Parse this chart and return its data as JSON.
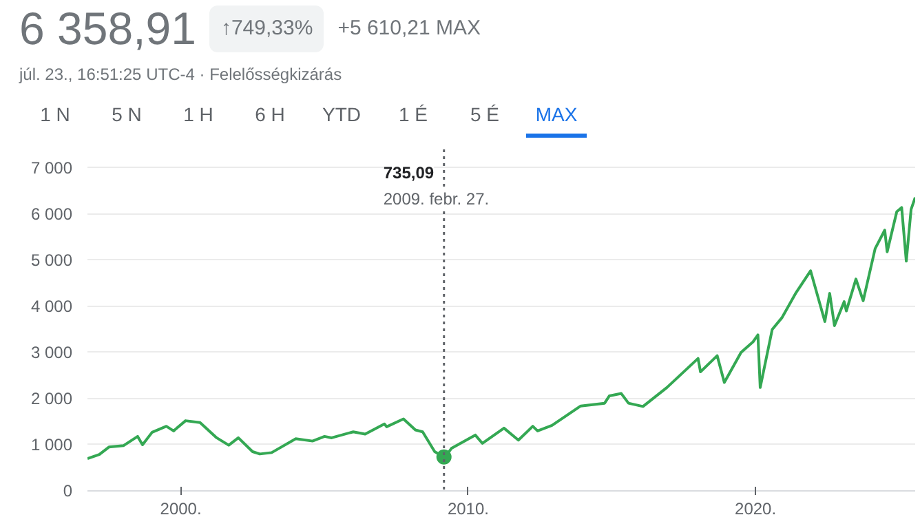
{
  "chart_data": {
    "type": "line",
    "title": "6 358,91",
    "subtitle": "júl. 23., 16:51:25 UTC-4 · Felelősségkizárás",
    "annotations": [
      "↑749,33%",
      "+5 610,21 MAX",
      "1 N",
      "5 N",
      "1 H",
      "6 H",
      "YTD",
      "1 É",
      "5 É",
      "MAX",
      "735,09",
      "2009. febr. 27."
    ],
    "x": [
      "1996-10",
      "1997-03",
      "1997-07",
      "1998-01",
      "1998-07",
      "1998-09",
      "1999-01",
      "1999-07",
      "1999-10",
      "2000-03",
      "2000-09",
      "2001-04",
      "2001-09",
      "2002-01",
      "2002-07",
      "2002-10",
      "2003-03",
      "2004-01",
      "2004-08",
      "2005-01",
      "2005-04",
      "2006-01",
      "2006-06",
      "2007-02",
      "2007-03",
      "2007-10",
      "2008-03",
      "2008-06",
      "2008-11",
      "2009-02-27",
      "2009-03",
      "2009-06",
      "2010-04",
      "2010-07",
      "2011-04",
      "2011-10",
      "2012-04",
      "2012-06",
      "2012-12",
      "2013-12",
      "2014-10",
      "2014-12",
      "2015-05",
      "2015-08",
      "2016-02",
      "2016-12",
      "2018-01",
      "2018-02",
      "2018-09",
      "2018-12",
      "2019-07",
      "2019-12",
      "2020-02",
      "2020-03",
      "2020-08",
      "2020-12",
      "2021-06",
      "2021-12",
      "2022-06",
      "2022-08",
      "2022-10",
      "2023-02",
      "2023-03",
      "2023-07",
      "2023-10",
      "2024-03",
      "2024-07",
      "2024-08",
      "2024-12",
      "2025-02",
      "2025-04",
      "2025-06",
      "2025-07-23"
    ],
    "series": [
      {
        "color": "#34a853",
        "values": [
          700,
          790,
          950,
          980,
          1180,
          1000,
          1270,
          1400,
          1300,
          1520,
          1480,
          1150,
          990,
          1150,
          850,
          800,
          830,
          1130,
          1080,
          1180,
          1150,
          1280,
          1230,
          1450,
          1390,
          1560,
          1320,
          1280,
          850,
          735.09,
          700,
          920,
          1210,
          1030,
          1360,
          1100,
          1400,
          1300,
          1420,
          1840,
          1900,
          2060,
          2110,
          1900,
          1830,
          2240,
          2870,
          2580,
          2930,
          2350,
          3000,
          3230,
          3380,
          2240,
          3500,
          3750,
          4300,
          4770,
          3670,
          4280,
          3580,
          4100,
          3900,
          4590,
          4120,
          5250,
          5650,
          5180,
          6050,
          6140,
          4980,
          6100,
          6358.91
        ]
      }
    ],
    "xlim": [
      "1996-10",
      "2025-07-23"
    ],
    "xticks": [
      {
        "value": "2000-01-01",
        "label": "2000."
      },
      {
        "value": "2010-01-01",
        "label": "2010."
      },
      {
        "value": "2020-01-01",
        "label": "2020."
      }
    ],
    "ylim": [
      0,
      7400
    ],
    "yticks": [
      {
        "value": 0,
        "label": "0"
      },
      {
        "value": 1000,
        "label": "1 000"
      },
      {
        "value": 2000,
        "label": "2 000"
      },
      {
        "value": 3000,
        "label": "3 000"
      },
      {
        "value": 4000,
        "label": "4 000"
      },
      {
        "value": 5000,
        "label": "5 000"
      },
      {
        "value": 6000,
        "label": "6 000"
      },
      {
        "value": 7000,
        "label": "7 000"
      }
    ],
    "ref_lines": [
      {
        "axis": "x",
        "value": "2009-02-27",
        "color": "#5f6368",
        "line_style": "dotted"
      }
    ],
    "grid": "y"
  }
}
